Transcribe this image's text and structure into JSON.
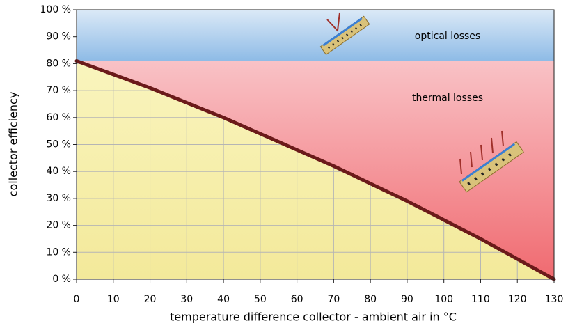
{
  "chart_data": {
    "type": "line",
    "y_label": "collector efficiency",
    "x_label": "temperature difference collector - ambient air in °C",
    "annotations": [
      "optical losses",
      "thermal losses"
    ],
    "x": [
      0,
      10,
      20,
      30,
      40,
      50,
      60,
      70,
      80,
      90,
      100,
      110,
      120,
      130
    ],
    "values": [
      81,
      76,
      71,
      65.5,
      60,
      54,
      48,
      42,
      35.5,
      29,
      22,
      15,
      7.5,
      0
    ],
    "color": "#6b1a1a",
    "xlim": [
      0,
      130
    ],
    "xticks": [
      0,
      10,
      20,
      30,
      40,
      50,
      60,
      70,
      80,
      90,
      100,
      110,
      120,
      130
    ],
    "ylim": [
      0,
      100
    ],
    "yticks": [
      {
        "value": 0,
        "label": "0 %"
      },
      {
        "value": 10,
        "label": "10 %"
      },
      {
        "value": 20,
        "label": "20 %"
      },
      {
        "value": 30,
        "label": "30 %"
      },
      {
        "value": 40,
        "label": "40 %"
      },
      {
        "value": 50,
        "label": "50 %"
      },
      {
        "value": 60,
        "label": "60 %"
      },
      {
        "value": 70,
        "label": "70 %"
      },
      {
        "value": 80,
        "label": "80 %"
      },
      {
        "value": 90,
        "label": "90 %"
      },
      {
        "value": 100,
        "label": "100 %"
      }
    ],
    "grid": true
  }
}
